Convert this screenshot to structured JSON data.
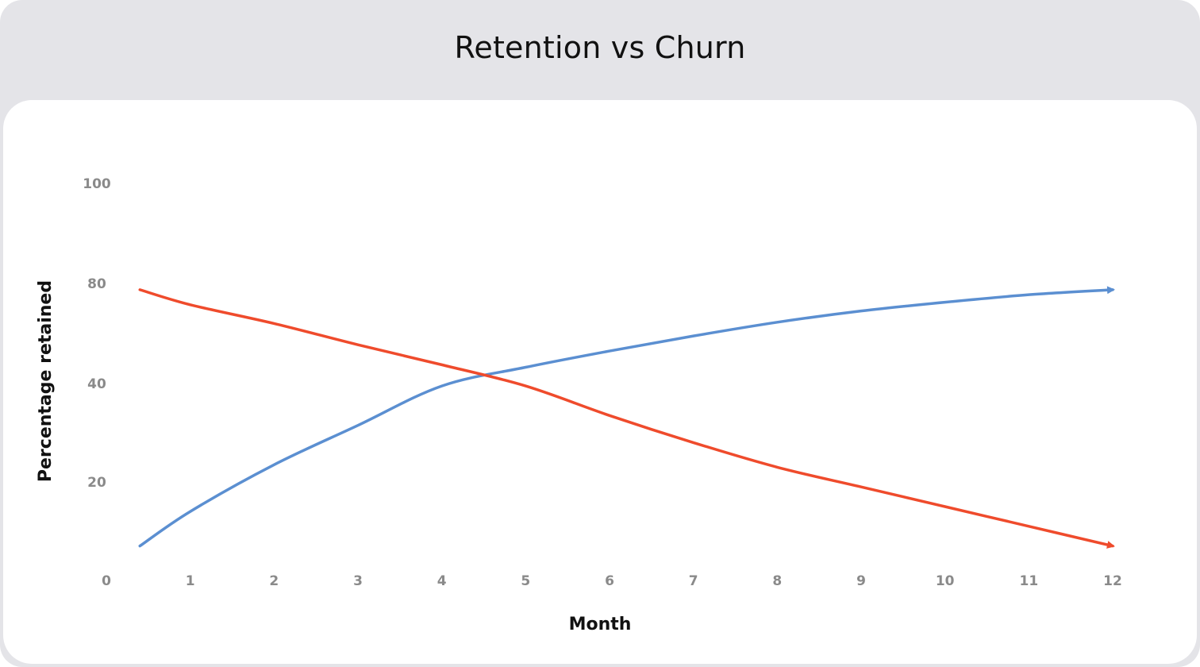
{
  "title": "Retention vs Churn",
  "colors": {
    "background": "#e4e4e8",
    "card": "#ffffff",
    "series_retention": "#5b8fd1",
    "series_churn": "#ef4b2c",
    "tick": "#8a8a8a"
  },
  "chart_data": {
    "type": "line",
    "title": "Retention vs Churn",
    "xlabel": "Month",
    "ylabel": "Percentage retained",
    "x_ticks": [
      "0",
      "1",
      "2",
      "3",
      "4",
      "5",
      "6",
      "7",
      "8",
      "9",
      "10",
      "11",
      "12"
    ],
    "y_ticks": [
      "0",
      "20",
      "40",
      "80",
      "100"
    ],
    "y_tick_values": [
      0,
      20,
      40,
      80,
      100
    ],
    "xlim": [
      0,
      12
    ],
    "grid": false,
    "series": [
      {
        "color": "#5b8fd1",
        "arrow_end": true,
        "x": [
          0.4,
          1,
          2,
          3,
          4,
          5,
          6,
          7,
          8,
          9,
          10,
          11,
          12
        ],
        "y": [
          7,
          14,
          23.5,
          31.5,
          39.5,
          46.5,
          53,
          59,
          64.5,
          69,
          72.5,
          75.5,
          77.5
        ]
      },
      {
        "color": "#ef4b2c",
        "arrow_end": true,
        "x": [
          0.4,
          1,
          2,
          3,
          4,
          5,
          6,
          7,
          8,
          9,
          10,
          11,
          12
        ],
        "y": [
          77.5,
          71.5,
          64,
          55.5,
          47.5,
          39.5,
          33.5,
          28,
          23,
          19,
          15,
          11,
          7
        ]
      }
    ]
  }
}
